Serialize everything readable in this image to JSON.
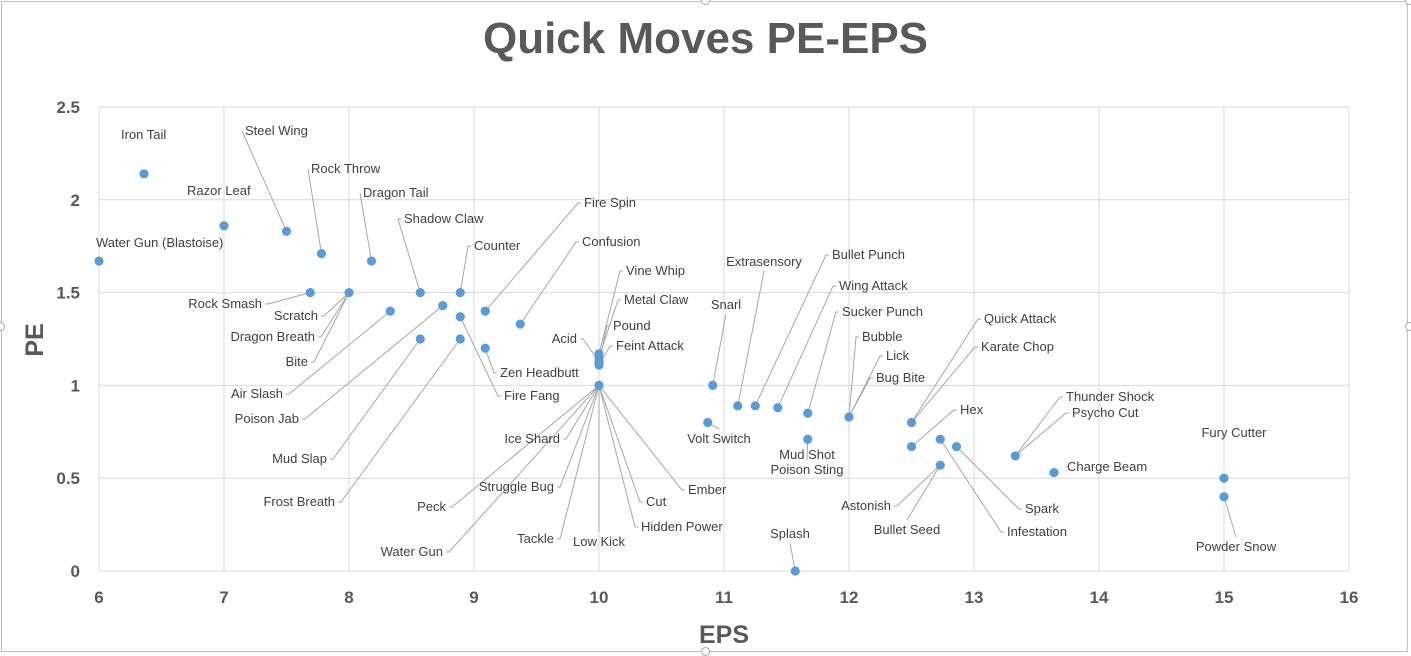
{
  "chart_data": {
    "type": "scatter",
    "title": "Quick Moves PE-EPS",
    "xlabel": "EPS",
    "ylabel": "PE",
    "xlim": [
      6,
      16
    ],
    "ylim": [
      0,
      2.5
    ],
    "xticks": [
      "6",
      "7",
      "8",
      "9",
      "10",
      "11",
      "12",
      "13",
      "14",
      "15",
      "16"
    ],
    "yticks": [
      "0",
      "0.5",
      "1",
      "1.5",
      "2",
      "2.5"
    ],
    "grid": true,
    "marker_color": "#5b9bd5",
    "points": [
      {
        "label": "Water Gun (Blastoise)",
        "x": 6.0,
        "y": 1.67
      },
      {
        "label": "Iron Tail",
        "x": 6.36,
        "y": 2.14
      },
      {
        "label": "Razor Leaf",
        "x": 7.0,
        "y": 1.86
      },
      {
        "label": "Steel Wing",
        "x": 7.5,
        "y": 1.83
      },
      {
        "label": "Rock Throw",
        "x": 7.78,
        "y": 1.71
      },
      {
        "label": "Dragon Tail",
        "x": 8.18,
        "y": 1.67
      },
      {
        "label": "Rock Smash",
        "x": 7.69,
        "y": 1.5
      },
      {
        "label": "Scratch",
        "x": 8.0,
        "y": 1.5
      },
      {
        "label": "Dragon Breath",
        "x": 8.0,
        "y": 1.5
      },
      {
        "label": "Bite",
        "x": 8.0,
        "y": 1.5
      },
      {
        "label": "Shadow Claw",
        "x": 8.57,
        "y": 1.5
      },
      {
        "label": "Counter",
        "x": 8.89,
        "y": 1.5
      },
      {
        "label": "Air Slash",
        "x": 8.33,
        "y": 1.4
      },
      {
        "label": "Poison Jab",
        "x": 8.75,
        "y": 1.43
      },
      {
        "label": "Mud Slap",
        "x": 8.57,
        "y": 1.25
      },
      {
        "label": "Frost Breath",
        "x": 8.89,
        "y": 1.25
      },
      {
        "label": "Fire Fang",
        "x": 8.89,
        "y": 1.37
      },
      {
        "label": "Fire Spin",
        "x": 9.09,
        "y": 1.4
      },
      {
        "label": "Zen Headbutt",
        "x": 9.09,
        "y": 1.2
      },
      {
        "label": "Confusion",
        "x": 9.37,
        "y": 1.33
      },
      {
        "label": "Vine Whip",
        "x": 10.0,
        "y": 1.17
      },
      {
        "label": "Metal Claw",
        "x": 10.0,
        "y": 1.15
      },
      {
        "label": "Acid",
        "x": 10.0,
        "y": 1.13
      },
      {
        "label": "Pound",
        "x": 10.0,
        "y": 1.12
      },
      {
        "label": "Feint Attack",
        "x": 10.0,
        "y": 1.11
      },
      {
        "label": "Ice Shard",
        "x": 10.0,
        "y": 1.0
      },
      {
        "label": "Struggle Bug",
        "x": 10.0,
        "y": 1.0
      },
      {
        "label": "Peck",
        "x": 10.0,
        "y": 1.0
      },
      {
        "label": "Water Gun",
        "x": 10.0,
        "y": 1.0
      },
      {
        "label": "Tackle",
        "x": 10.0,
        "y": 1.0
      },
      {
        "label": "Low Kick",
        "x": 10.0,
        "y": 1.0
      },
      {
        "label": "Hidden Power",
        "x": 10.0,
        "y": 1.0
      },
      {
        "label": "Cut",
        "x": 10.0,
        "y": 1.0
      },
      {
        "label": "Ember",
        "x": 10.0,
        "y": 1.0
      },
      {
        "label": "Volt Switch",
        "x": 10.87,
        "y": 0.8
      },
      {
        "label": "Snarl",
        "x": 10.91,
        "y": 1.0
      },
      {
        "label": "Extrasensory",
        "x": 11.11,
        "y": 0.89
      },
      {
        "label": "Bullet Punch",
        "x": 11.25,
        "y": 0.89
      },
      {
        "label": "Wing Attack",
        "x": 11.43,
        "y": 0.88
      },
      {
        "label": "Sucker Punch",
        "x": 11.67,
        "y": 0.85
      },
      {
        "label": "Mud Shot",
        "x": 11.67,
        "y": 0.71
      },
      {
        "label": "Poison Sting",
        "x": 11.67,
        "y": 0.71
      },
      {
        "label": "Splash",
        "x": 11.57,
        "y": 0.0
      },
      {
        "label": "Bubble",
        "x": 12.0,
        "y": 0.83
      },
      {
        "label": "Lick",
        "x": 12.0,
        "y": 0.83
      },
      {
        "label": "Bug Bite",
        "x": 12.0,
        "y": 0.83
      },
      {
        "label": "Quick Attack",
        "x": 12.5,
        "y": 0.8
      },
      {
        "label": "Karate Chop",
        "x": 12.5,
        "y": 0.8
      },
      {
        "label": "Hex",
        "x": 12.5,
        "y": 0.67
      },
      {
        "label": "Astonish",
        "x": 12.73,
        "y": 0.57
      },
      {
        "label": "Bullet Seed",
        "x": 12.73,
        "y": 0.57
      },
      {
        "label": "Infestation",
        "x": 12.73,
        "y": 0.71
      },
      {
        "label": "Spark",
        "x": 12.86,
        "y": 0.67
      },
      {
        "label": "Thunder Shock",
        "x": 13.33,
        "y": 0.62
      },
      {
        "label": "Psycho Cut",
        "x": 13.33,
        "y": 0.62
      },
      {
        "label": "Charge Beam",
        "x": 13.64,
        "y": 0.53
      },
      {
        "label": "Fury Cutter",
        "x": 15.0,
        "y": 0.5
      },
      {
        "label": "Powder Snow",
        "x": 15.0,
        "y": 0.4
      }
    ]
  }
}
